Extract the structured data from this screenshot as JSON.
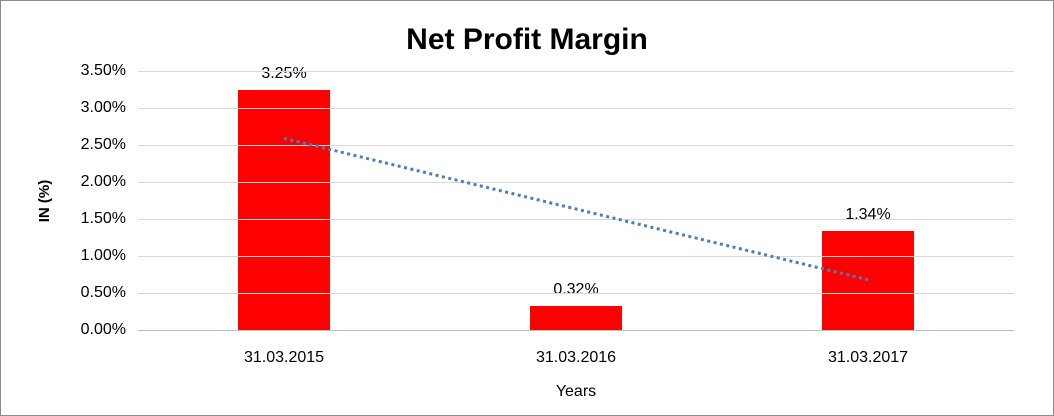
{
  "frame": {
    "background": "#ffffff",
    "border_color": "#8c8c8c"
  },
  "chart_data": {
    "type": "bar",
    "title": "Net Profit Margin",
    "xlabel": "Years",
    "ylabel": "IN (%)",
    "categories": [
      "31.03.2015",
      "31.03.2016",
      "31.03.2017"
    ],
    "values": [
      3.25,
      0.32,
      1.34
    ],
    "data_labels": [
      "3.25%",
      "0.32%",
      "1.34%"
    ],
    "ylim": [
      0,
      3.5
    ],
    "ytick_step": 0.5,
    "ytick_labels": [
      "0.00%",
      "0.50%",
      "1.00%",
      "1.50%",
      "2.00%",
      "2.50%",
      "3.00%",
      "3.50%"
    ],
    "grid": true,
    "legend": "none",
    "colors": {
      "bar": "#ff0000",
      "trendline": "#4a7ebb",
      "gridline": "#d9d9d9",
      "axis_line": "#bfbfbf",
      "text": "#000000"
    },
    "trendline": {
      "type": "linear",
      "style": "dotted",
      "start_value": 2.59,
      "end_value": 0.68
    }
  }
}
